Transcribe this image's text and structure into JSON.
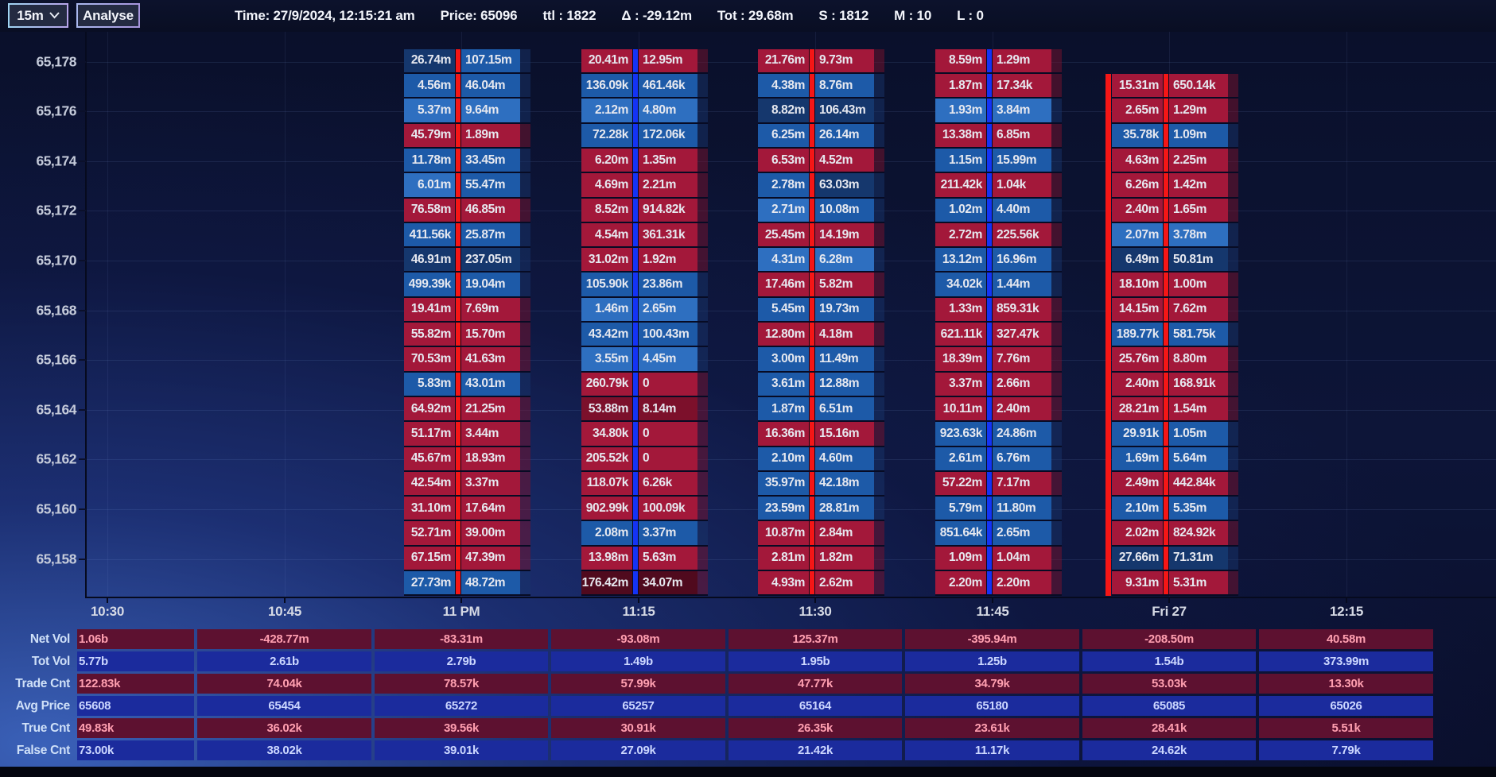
{
  "toolbar": {
    "timeframe": "15m",
    "analyse_label": "Analyse",
    "stats": [
      {
        "label": "Time:",
        "value": "27/9/2024, 12:15:21 am"
      },
      {
        "label": "Price:",
        "value": "65096"
      },
      {
        "label": "ttl :",
        "value": "1822"
      },
      {
        "label": "Δ :",
        "value": "-29.12m"
      },
      {
        "label": "Tot :",
        "value": "29.68m"
      },
      {
        "label": "S :",
        "value": "1812"
      },
      {
        "label": "M :",
        "value": "10"
      },
      {
        "label": "L :",
        "value": "0"
      }
    ]
  },
  "colors": {
    "cells": {
      "b1": "#15376d",
      "b2": "#1d5aa8",
      "b3": "#2e6fc0",
      "r1": "#a3183a",
      "r2": "#7c102b",
      "r3": "#500a1e"
    },
    "separators": {
      "red": "#f51616",
      "blue": "#1433f5"
    },
    "tails": {
      "b": "rgba(23,52,105,0.5)",
      "r": "rgba(122,18,43,0.5)"
    },
    "footprint_text": "#e6e8ef",
    "table_red_bg": "#5d1130",
    "table_red_text": "#ff9fb0",
    "table_blue_bg": "#1b2b9d",
    "table_blue_text": "#ccd7ff"
  },
  "chart_data": {
    "type": "heatmap",
    "title": "Order-flow footprint chart (bid x ask volume per price level)",
    "y_axis": {
      "labels": [
        "65,178",
        "65,176",
        "65,174",
        "65,172",
        "65,170",
        "65,168",
        "65,166",
        "65,164",
        "65,162",
        "65,160",
        "65,158"
      ]
    },
    "x_axis": {
      "labels": [
        "10:30",
        "10:45",
        "11 PM",
        "11:15",
        "11:30",
        "11:45",
        "Fri 27",
        "12:15"
      ],
      "tick_x": [
        135,
        358,
        580,
        803,
        1025,
        1248,
        1470,
        1693
      ]
    },
    "columns": [
      {
        "time": "11 PM",
        "tick_x": 580,
        "sep": "red",
        "row_offset": 0,
        "top_price": 65178,
        "rows": [
          [
            "26.74m",
            "107.15m",
            "b1",
            "b2"
          ],
          [
            "4.56m",
            "46.04m",
            "b2",
            "b2"
          ],
          [
            "5.37m",
            "9.64m",
            "b3",
            "b3"
          ],
          [
            "45.79m",
            "1.89m",
            "r1",
            "r1"
          ],
          [
            "11.78m",
            "33.45m",
            "b2",
            "b2"
          ],
          [
            "6.01m",
            "55.47m",
            "b3",
            "b2"
          ],
          [
            "76.58m",
            "46.85m",
            "r1",
            "r1"
          ],
          [
            "411.56k",
            "25.87m",
            "b2",
            "b2"
          ],
          [
            "46.91m",
            "237.05m",
            "b1",
            "b1"
          ],
          [
            "499.39k",
            "19.04m",
            "b2",
            "b2"
          ],
          [
            "19.41m",
            "7.69m",
            "r1",
            "r1"
          ],
          [
            "55.82m",
            "15.70m",
            "r1",
            "r1"
          ],
          [
            "70.53m",
            "41.63m",
            "r1",
            "r1"
          ],
          [
            "5.83m",
            "43.01m",
            "b2",
            "b2"
          ],
          [
            "64.92m",
            "21.25m",
            "r1",
            "r1"
          ],
          [
            "51.17m",
            "3.44m",
            "r1",
            "r1"
          ],
          [
            "45.67m",
            "18.93m",
            "r1",
            "r1"
          ],
          [
            "42.54m",
            "3.37m",
            "r1",
            "r1"
          ],
          [
            "31.10m",
            "17.64m",
            "r1",
            "r1"
          ],
          [
            "52.71m",
            "39.00m",
            "r1",
            "r1"
          ],
          [
            "67.15m",
            "47.39m",
            "r1",
            "r1"
          ],
          [
            "27.73m",
            "48.72m",
            "b2",
            "b2"
          ]
        ]
      },
      {
        "time": "11:15",
        "tick_x": 803,
        "sep": "blue",
        "row_offset": 0,
        "top_price": 65178,
        "rows": [
          [
            "20.41m",
            "12.95m",
            "r1",
            "r1"
          ],
          [
            "136.09k",
            "461.46k",
            "b2",
            "b2"
          ],
          [
            "2.12m",
            "4.80m",
            "b3",
            "b3"
          ],
          [
            "72.28k",
            "172.06k",
            "b2",
            "b2"
          ],
          [
            "6.20m",
            "1.35m",
            "r1",
            "r1"
          ],
          [
            "4.69m",
            "2.21m",
            "r1",
            "r1"
          ],
          [
            "8.52m",
            "914.82k",
            "r1",
            "r1"
          ],
          [
            "4.54m",
            "361.31k",
            "r1",
            "r1"
          ],
          [
            "31.02m",
            "1.92m",
            "r1",
            "r1"
          ],
          [
            "105.90k",
            "23.86m",
            "b2",
            "b2"
          ],
          [
            "1.46m",
            "2.65m",
            "b3",
            "b3"
          ],
          [
            "43.42m",
            "100.43m",
            "b2",
            "b2"
          ],
          [
            "3.55m",
            "4.45m",
            "b3",
            "b3"
          ],
          [
            "260.79k",
            "0",
            "r1",
            "r1"
          ],
          [
            "53.88m",
            "8.14m",
            "r2",
            "r2"
          ],
          [
            "34.80k",
            "0",
            "r1",
            "r1"
          ],
          [
            "205.52k",
            "0",
            "r1",
            "r1"
          ],
          [
            "118.07k",
            "6.26k",
            "r1",
            "r1"
          ],
          [
            "902.99k",
            "100.09k",
            "r1",
            "r1"
          ],
          [
            "2.08m",
            "3.37m",
            "b2",
            "b2"
          ],
          [
            "13.98m",
            "5.63m",
            "r1",
            "r1"
          ],
          [
            "176.42m",
            "34.07m",
            "r3",
            "r3"
          ]
        ]
      },
      {
        "time": "11:30",
        "tick_x": 1025,
        "sep": "red",
        "row_offset": 0,
        "top_price": 65178,
        "rows": [
          [
            "21.76m",
            "9.73m",
            "r1",
            "r1"
          ],
          [
            "4.38m",
            "8.76m",
            "b2",
            "b2"
          ],
          [
            "8.82m",
            "106.43m",
            "b1",
            "b1"
          ],
          [
            "6.25m",
            "26.14m",
            "b2",
            "b2"
          ],
          [
            "6.53m",
            "4.52m",
            "r1",
            "r1"
          ],
          [
            "2.78m",
            "63.03m",
            "b2",
            "b1"
          ],
          [
            "2.71m",
            "10.08m",
            "b3",
            "b2"
          ],
          [
            "25.45m",
            "14.19m",
            "r1",
            "r1"
          ],
          [
            "4.31m",
            "6.28m",
            "b3",
            "b3"
          ],
          [
            "17.46m",
            "5.82m",
            "r1",
            "r1"
          ],
          [
            "5.45m",
            "19.73m",
            "b2",
            "b2"
          ],
          [
            "12.80m",
            "4.18m",
            "r1",
            "r1"
          ],
          [
            "3.00m",
            "11.49m",
            "b2",
            "b2"
          ],
          [
            "3.61m",
            "12.88m",
            "b2",
            "b2"
          ],
          [
            "1.87m",
            "6.51m",
            "b2",
            "b2"
          ],
          [
            "16.36m",
            "15.16m",
            "r1",
            "r1"
          ],
          [
            "2.10m",
            "4.60m",
            "b2",
            "b2"
          ],
          [
            "35.97m",
            "42.18m",
            "b2",
            "b2"
          ],
          [
            "23.59m",
            "28.81m",
            "b2",
            "b2"
          ],
          [
            "10.87m",
            "2.84m",
            "r1",
            "r1"
          ],
          [
            "2.81m",
            "1.82m",
            "r1",
            "r1"
          ],
          [
            "4.93m",
            "2.62m",
            "r1",
            "r1"
          ]
        ]
      },
      {
        "time": "11:45",
        "tick_x": 1248,
        "sep": "blue",
        "row_offset": 0,
        "top_price": 65178,
        "rows": [
          [
            "8.59m",
            "1.29m",
            "r1",
            "r1"
          ],
          [
            "1.87m",
            "17.34k",
            "r1",
            "r1"
          ],
          [
            "1.93m",
            "3.84m",
            "b3",
            "b3"
          ],
          [
            "13.38m",
            "6.85m",
            "r1",
            "r1"
          ],
          [
            "1.15m",
            "15.99m",
            "b2",
            "b2"
          ],
          [
            "211.42k",
            "1.04k",
            "r1",
            "r1"
          ],
          [
            "1.02m",
            "4.40m",
            "b2",
            "b2"
          ],
          [
            "2.72m",
            "225.56k",
            "r1",
            "r1"
          ],
          [
            "13.12m",
            "16.96m",
            "b2",
            "b2"
          ],
          [
            "34.02k",
            "1.44m",
            "b2",
            "b2"
          ],
          [
            "1.33m",
            "859.31k",
            "r1",
            "r1"
          ],
          [
            "621.11k",
            "327.47k",
            "r1",
            "r1"
          ],
          [
            "18.39m",
            "7.76m",
            "r1",
            "r1"
          ],
          [
            "3.37m",
            "2.66m",
            "r1",
            "r1"
          ],
          [
            "10.11m",
            "2.40m",
            "r1",
            "r1"
          ],
          [
            "923.63k",
            "24.86m",
            "b2",
            "b2"
          ],
          [
            "2.61m",
            "6.76m",
            "b2",
            "b2"
          ],
          [
            "57.22m",
            "7.17m",
            "r1",
            "r1"
          ],
          [
            "5.79m",
            "11.80m",
            "b2",
            "b2"
          ],
          [
            "851.64k",
            "2.65m",
            "b2",
            "b2"
          ],
          [
            "1.09m",
            "1.04m",
            "r1",
            "r1"
          ],
          [
            "2.20m",
            "2.20m",
            "r1",
            "r1"
          ]
        ]
      },
      {
        "time": "Fri 27",
        "tick_x": 1470,
        "sep": "red",
        "row_offset": 1,
        "top_price": 65177,
        "left_bar": true,
        "rows": [
          [
            "15.31m",
            "650.14k",
            "r1",
            "r1"
          ],
          [
            "2.65m",
            "1.29m",
            "r1",
            "r1"
          ],
          [
            "35.78k",
            "1.09m",
            "b2",
            "b2"
          ],
          [
            "4.63m",
            "2.25m",
            "r1",
            "r1"
          ],
          [
            "6.26m",
            "1.42m",
            "r1",
            "r1"
          ],
          [
            "2.40m",
            "1.65m",
            "r1",
            "r1"
          ],
          [
            "2.07m",
            "3.78m",
            "b3",
            "b3"
          ],
          [
            "6.49m",
            "50.81m",
            "b1",
            "b1"
          ],
          [
            "18.10m",
            "1.00m",
            "r1",
            "r1"
          ],
          [
            "14.15m",
            "7.62m",
            "r1",
            "r1"
          ],
          [
            "189.77k",
            "581.75k",
            "b2",
            "b2"
          ],
          [
            "25.76m",
            "8.80m",
            "r1",
            "r1"
          ],
          [
            "2.40m",
            "168.91k",
            "r1",
            "r1"
          ],
          [
            "28.21m",
            "1.54m",
            "r1",
            "r1"
          ],
          [
            "29.91k",
            "1.05m",
            "b2",
            "b2"
          ],
          [
            "1.69m",
            "5.64m",
            "b2",
            "b2"
          ],
          [
            "2.49m",
            "442.84k",
            "r1",
            "r1"
          ],
          [
            "2.10m",
            "5.35m",
            "b2",
            "b2"
          ],
          [
            "2.02m",
            "824.92k",
            "r1",
            "r1"
          ],
          [
            "27.66m",
            "71.31m",
            "b1",
            "b1"
          ],
          [
            "9.31m",
            "5.31m",
            "r1",
            "r1"
          ]
        ]
      }
    ],
    "summary_table": {
      "row_labels": [
        "Net Vol",
        "Tot Vol",
        "Trade Cnt",
        "Avg Price",
        "True Cnt",
        "False Cnt"
      ],
      "row_types": [
        "red",
        "blue",
        "red",
        "blue",
        "red",
        "blue"
      ],
      "columns": [
        [
          "1.06b",
          "5.77b",
          "122.83k",
          "65608",
          "49.83k",
          "73.00k"
        ],
        [
          "-428.77m",
          "2.61b",
          "74.04k",
          "65454",
          "36.02k",
          "38.02k"
        ],
        [
          "-83.31m",
          "2.79b",
          "78.57k",
          "65272",
          "39.56k",
          "39.01k"
        ],
        [
          "-93.08m",
          "1.49b",
          "57.99k",
          "65257",
          "30.91k",
          "27.09k"
        ],
        [
          "125.37m",
          "1.95b",
          "47.77k",
          "65164",
          "26.35k",
          "21.42k"
        ],
        [
          "-395.94m",
          "1.25b",
          "34.79k",
          "65180",
          "23.61k",
          "11.17k"
        ],
        [
          "-208.50m",
          "1.54b",
          "53.03k",
          "65085",
          "28.41k",
          "24.62k"
        ],
        [
          "40.58m",
          "373.99m",
          "13.30k",
          "65026",
          "5.51k",
          "7.79k"
        ]
      ]
    }
  }
}
